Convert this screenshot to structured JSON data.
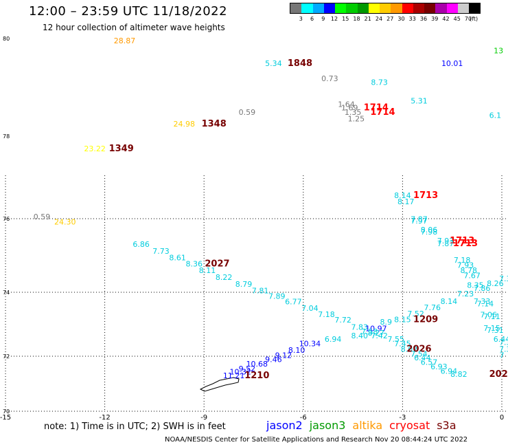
{
  "header": {
    "title": "12:00 – 23:59 UTC 11/18/2022",
    "subtitle": "12 hour collection of altimeter wave heights"
  },
  "colorbar": {
    "colors": [
      "#777777",
      "#00ffff",
      "#00aaff",
      "#0000ff",
      "#00ff00",
      "#00cc00",
      "#009900",
      "#ffff00",
      "#ffcc00",
      "#ff9900",
      "#ff0000",
      "#aa0000",
      "#770000",
      "#aa00aa",
      "#ff00ff",
      "#cccccc",
      "#000000"
    ],
    "labels": [
      "3",
      "6",
      "9",
      "12",
      "15",
      "18",
      "21",
      "24",
      "27",
      "30",
      "33",
      "36",
      "39",
      "42",
      "45",
      "70",
      "(ft)"
    ]
  },
  "map": {
    "lon_ticks": [
      "-15",
      "-12",
      "-9",
      "-6",
      "-3",
      "0"
    ],
    "lat_ticks": [
      "80",
      "78",
      "76",
      "74",
      "72",
      "70"
    ],
    "points": [
      {
        "t": "28.87",
        "lon": -11.4,
        "lat": 79.9,
        "c": "#ff9900"
      },
      {
        "t": "13",
        "lon": -0.1,
        "lat": 79.7,
        "c": "#00cc00"
      },
      {
        "t": "5.34",
        "lon": -6.9,
        "lat": 79.44,
        "c": "#00ccdd"
      },
      {
        "t": "1848",
        "lon": -6.1,
        "lat": 79.44,
        "c": "#770000",
        "b": 1
      },
      {
        "t": "10.01",
        "lon": -1.5,
        "lat": 79.44,
        "c": "#0000ff"
      },
      {
        "t": "0.73",
        "lon": -5.2,
        "lat": 79.13,
        "c": "#777777"
      },
      {
        "t": "8.73",
        "lon": -3.7,
        "lat": 79.05,
        "c": "#00ccdd"
      },
      {
        "t": "5.31",
        "lon": -2.5,
        "lat": 78.67,
        "c": "#00ccdd"
      },
      {
        "t": "1.64",
        "lon": -4.7,
        "lat": 78.6,
        "c": "#777777"
      },
      {
        "t": "1.69",
        "lon": -4.6,
        "lat": 78.53,
        "c": "#777777"
      },
      {
        "t": "1714",
        "lon": -3.8,
        "lat": 78.53,
        "c": "#ff0000",
        "b": 1
      },
      {
        "t": "1.35",
        "lon": -4.5,
        "lat": 78.44,
        "c": "#777777"
      },
      {
        "t": "1714",
        "lon": -3.6,
        "lat": 78.44,
        "c": "#ff0000",
        "b": 1
      },
      {
        "t": "0.59",
        "lon": -7.7,
        "lat": 78.44,
        "c": "#777777"
      },
      {
        "t": "6.1",
        "lon": -0.2,
        "lat": 78.37,
        "c": "#00ccdd"
      },
      {
        "t": "1.25",
        "lon": -4.4,
        "lat": 78.3,
        "c": "#777777"
      },
      {
        "t": "24.98",
        "lon": -9.6,
        "lat": 78.2,
        "c": "#ffcc00"
      },
      {
        "t": "1348",
        "lon": -8.7,
        "lat": 78.2,
        "c": "#770000",
        "b": 1
      },
      {
        "t": "23.22",
        "lon": -12.3,
        "lat": 77.63,
        "c": "#ffff00"
      },
      {
        "t": "1349",
        "lon": -11.5,
        "lat": 77.63,
        "c": "#770000",
        "b": 1
      },
      {
        "t": "8.14",
        "lon": -3.0,
        "lat": 76.5,
        "c": "#00ccdd"
      },
      {
        "t": "1713",
        "lon": -2.3,
        "lat": 76.5,
        "c": "#ff0000",
        "b": 1
      },
      {
        "t": "8.17",
        "lon": -2.9,
        "lat": 76.35,
        "c": "#00ccdd"
      },
      {
        "t": "7.87",
        "lon": -2.5,
        "lat": 75.92,
        "c": "#00ccdd"
      },
      {
        "t": "7.97",
        "lon": -2.5,
        "lat": 75.87,
        "c": "#00ccdd"
      },
      {
        "t": "0.59",
        "lon": -13.9,
        "lat": 75.98,
        "c": "#777777"
      },
      {
        "t": "24.30",
        "lon": -13.2,
        "lat": 75.84,
        "c": "#ffcc00"
      },
      {
        "t": "8.06",
        "lon": -2.2,
        "lat": 75.63,
        "c": "#00ccdd"
      },
      {
        "t": "7.98",
        "lon": -2.2,
        "lat": 75.57,
        "c": "#00ccdd"
      },
      {
        "t": "7.93",
        "lon": -1.7,
        "lat": 75.33,
        "c": "#00ccdd"
      },
      {
        "t": "1713",
        "lon": -1.2,
        "lat": 75.33,
        "c": "#ff0000",
        "b": 1
      },
      {
        "t": "7.87",
        "lon": -1.7,
        "lat": 75.25,
        "c": "#00ccdd"
      },
      {
        "t": "1713",
        "lon": -1.1,
        "lat": 75.25,
        "c": "#ff0000",
        "b": 1
      },
      {
        "t": "6.86",
        "lon": -10.9,
        "lat": 75.23,
        "c": "#00ccdd"
      },
      {
        "t": "7.73",
        "lon": -10.3,
        "lat": 75.05,
        "c": "#00ccdd"
      },
      {
        "t": "8.61",
        "lon": -9.8,
        "lat": 74.87,
        "c": "#00ccdd"
      },
      {
        "t": "8.36",
        "lon": -9.3,
        "lat": 74.7,
        "c": "#00ccdd"
      },
      {
        "t": "2027",
        "lon": -8.6,
        "lat": 74.7,
        "c": "#770000",
        "b": 1
      },
      {
        "t": "8.11",
        "lon": -8.9,
        "lat": 74.52,
        "c": "#00ccdd"
      },
      {
        "t": "7.18",
        "lon": -1.2,
        "lat": 74.8,
        "c": "#00ccdd"
      },
      {
        "t": "7.93",
        "lon": -1.1,
        "lat": 74.66,
        "c": "#00ccdd"
      },
      {
        "t": "8.78",
        "lon": -1.0,
        "lat": 74.52,
        "c": "#00ccdd"
      },
      {
        "t": "7.67",
        "lon": -0.9,
        "lat": 74.38,
        "c": "#00ccdd"
      },
      {
        "t": "8.22",
        "lon": -8.4,
        "lat": 74.34,
        "c": "#00ccdd"
      },
      {
        "t": "8.26",
        "lon": -0.2,
        "lat": 74.17,
        "c": "#00ccdd"
      },
      {
        "t": "7.3",
        "lon": 0.1,
        "lat": 74.3,
        "c": "#00ccdd"
      },
      {
        "t": "8.79",
        "lon": -7.8,
        "lat": 74.15,
        "c": "#00ccdd"
      },
      {
        "t": "8.35",
        "lon": -0.8,
        "lat": 74.12,
        "c": "#00ccdd"
      },
      {
        "t": "7.86",
        "lon": -0.6,
        "lat": 74.04,
        "c": "#00ccdd"
      },
      {
        "t": "7.81",
        "lon": -7.3,
        "lat": 73.97,
        "c": "#00ccdd"
      },
      {
        "t": "7.23",
        "lon": -1.1,
        "lat": 73.87,
        "c": "#00ccdd"
      },
      {
        "t": "7.89",
        "lon": -6.8,
        "lat": 73.8,
        "c": "#00ccdd"
      },
      {
        "t": "8.14",
        "lon": -1.6,
        "lat": 73.63,
        "c": "#00ccdd"
      },
      {
        "t": "7.33",
        "lon": -0.6,
        "lat": 73.63,
        "c": "#00ccdd"
      },
      {
        "t": "6.77",
        "lon": -6.3,
        "lat": 73.62,
        "c": "#00ccdd"
      },
      {
        "t": "7.14",
        "lon": -0.5,
        "lat": 73.56,
        "c": "#00ccdd"
      },
      {
        "t": "7.76",
        "lon": -2.1,
        "lat": 73.44,
        "c": "#00ccdd"
      },
      {
        "t": "7.04",
        "lon": -5.8,
        "lat": 73.42,
        "c": "#00ccdd"
      },
      {
        "t": "7.52",
        "lon": -2.6,
        "lat": 73.25,
        "c": "#00ccdd"
      },
      {
        "t": "7.18",
        "lon": -5.3,
        "lat": 73.23,
        "c": "#00ccdd"
      },
      {
        "t": "7.06",
        "lon": -0.4,
        "lat": 73.22,
        "c": "#00ccdd"
      },
      {
        "t": "7.11",
        "lon": -0.3,
        "lat": 73.16,
        "c": "#00ccdd"
      },
      {
        "t": "8.15",
        "lon": -3.0,
        "lat": 73.06,
        "c": "#00ccdd"
      },
      {
        "t": "1209",
        "lon": -2.3,
        "lat": 73.06,
        "c": "#770000",
        "b": 1
      },
      {
        "t": "8.9",
        "lon": -3.5,
        "lat": 72.99,
        "c": "#00ccdd"
      },
      {
        "t": "7.72",
        "lon": -4.8,
        "lat": 73.05,
        "c": "#00ccdd"
      },
      {
        "t": "7.83",
        "lon": -4.3,
        "lat": 72.83,
        "c": "#00ccdd"
      },
      {
        "t": "10.97",
        "lon": -3.8,
        "lat": 72.79,
        "c": "#0000ff"
      },
      {
        "t": "7.15",
        "lon": -0.3,
        "lat": 72.8,
        "c": "#00ccdd"
      },
      {
        "t": "7.58",
        "lon": -4.0,
        "lat": 72.69,
        "c": "#00ccdd"
      },
      {
        "t": "8.27",
        "lon": -3.8,
        "lat": 72.65,
        "c": "#00ccdd"
      },
      {
        "t": "7.31",
        "lon": -0.2,
        "lat": 72.73,
        "c": "#00ccdd"
      },
      {
        "t": "8.40",
        "lon": -4.3,
        "lat": 72.56,
        "c": "#00ccdd"
      },
      {
        "t": "7.42",
        "lon": -3.7,
        "lat": 72.56,
        "c": "#00ccdd"
      },
      {
        "t": "6.94",
        "lon": -5.1,
        "lat": 72.45,
        "c": "#00ccdd"
      },
      {
        "t": "7.55",
        "lon": -3.2,
        "lat": 72.45,
        "c": "#00ccdd"
      },
      {
        "t": "6.44",
        "lon": 0.0,
        "lat": 72.45,
        "c": "#00ccdd"
      },
      {
        "t": "10.34",
        "lon": -5.8,
        "lat": 72.31,
        "c": "#0000ff"
      },
      {
        "t": "7.45",
        "lon": -3.0,
        "lat": 72.31,
        "c": "#00ccdd"
      },
      {
        "t": "7.3",
        "lon": 0.1,
        "lat": 72.35,
        "c": "#00ccdd"
      },
      {
        "t": "8.02",
        "lon": -2.8,
        "lat": 72.14,
        "c": "#00ccdd"
      },
      {
        "t": "2026",
        "lon": -2.5,
        "lat": 72.14,
        "c": "#770000",
        "b": 1
      },
      {
        "t": "7.3",
        "lon": 0.1,
        "lat": 72.14,
        "c": "#00ccdd"
      },
      {
        "t": "8.10",
        "lon": -6.2,
        "lat": 72.11,
        "c": "#0000ff"
      },
      {
        "t": "7.54",
        "lon": -2.5,
        "lat": 71.99,
        "c": "#00ccdd"
      },
      {
        "t": "9.12",
        "lon": -6.6,
        "lat": 71.94,
        "c": "#0000ff"
      },
      {
        "t": "7",
        "lon": 0.0,
        "lat": 71.94,
        "c": "#00ccdd"
      },
      {
        "t": "6.44",
        "lon": -2.4,
        "lat": 71.85,
        "c": "#00ccdd"
      },
      {
        "t": "9.46",
        "lon": -6.9,
        "lat": 71.79,
        "c": "#0000ff"
      },
      {
        "t": "6.57",
        "lon": -2.2,
        "lat": 71.69,
        "c": "#00ccdd"
      },
      {
        "t": "10.68",
        "lon": -7.4,
        "lat": 71.62,
        "c": "#0000ff"
      },
      {
        "t": "6.93",
        "lon": -1.9,
        "lat": 71.53,
        "c": "#00ccdd"
      },
      {
        "t": "9.52",
        "lon": -7.7,
        "lat": 71.45,
        "c": "#0000ff"
      },
      {
        "t": "6.94",
        "lon": -1.6,
        "lat": 71.36,
        "c": "#00ccdd"
      },
      {
        "t": "10.32",
        "lon": -7.9,
        "lat": 71.34,
        "c": "#0000ff"
      },
      {
        "t": "8.82",
        "lon": -1.3,
        "lat": 71.25,
        "c": "#00ccdd"
      },
      {
        "t": "202",
        "lon": -0.1,
        "lat": 71.25,
        "c": "#770000",
        "b": 1
      },
      {
        "t": "11.21",
        "lon": -8.1,
        "lat": 71.2,
        "c": "#0000ff"
      },
      {
        "t": "1210",
        "lon": -7.4,
        "lat": 71.2,
        "c": "#770000",
        "b": 1
      }
    ]
  },
  "note": "note:  1) Time is in UTC;  2) SWH is in feet",
  "legend": [
    {
      "label": "jason2",
      "color": "#0000ff"
    },
    {
      "label": "jason3",
      "color": "#009900"
    },
    {
      "label": "altika",
      "color": "#ff9900"
    },
    {
      "label": "cryosat",
      "color": "#ff0000"
    },
    {
      "label": "s3a",
      "color": "#770000"
    }
  ],
  "footer": "NOAA/NESDIS Center for Satellite Applications and Research     Nov 20 08:44:24 UTC 2022"
}
